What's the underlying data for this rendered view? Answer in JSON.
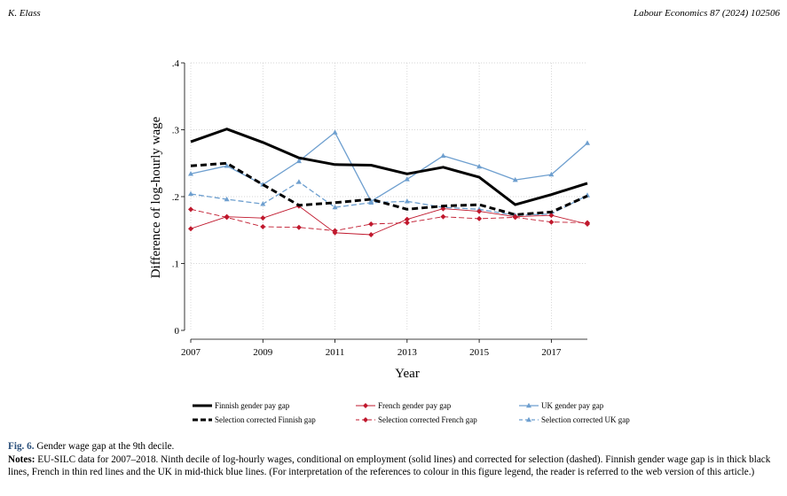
{
  "header": {
    "author": "K. Elass",
    "journal": "Labour Economics 87 (2024) 102506"
  },
  "caption": {
    "fig_label": "Fig. 6.",
    "fig_title": "Gender wage gap at the 9th decile.",
    "notes_label": "Notes:",
    "notes_text": "EU-SILC data for 2007–2018. Ninth decile of log-hourly wages, conditional on employment (solid lines) and corrected for selection (dashed). Finnish gender wage gap is in thick black lines, French in thin red lines and the UK in mid-thick blue lines. (For interpretation of the references to colour in this figure legend, the reader is referred to the web version of this article.)"
  },
  "chart_data": {
    "type": "line",
    "title": "",
    "xlabel": "Year",
    "ylabel": "Difference of log-hourly wage",
    "xlim": [
      2007,
      2018
    ],
    "ylim": [
      0,
      0.4
    ],
    "xticks": [
      2007,
      2009,
      2011,
      2013,
      2015,
      2017
    ],
    "xtick_labels": [
      "2007",
      "2009",
      "2011",
      "2013",
      "2015",
      "2017"
    ],
    "yticks": [
      0,
      0.1,
      0.2,
      0.3,
      0.4
    ],
    "ytick_labels": [
      "0",
      ".1",
      ".2",
      ".3",
      ".4"
    ],
    "grid": true,
    "legend_position": "bottom",
    "x": [
      2007,
      2008,
      2009,
      2010,
      2011,
      2012,
      2013,
      2014,
      2015,
      2016,
      2017,
      2018
    ],
    "series": [
      {
        "name": "Finnish gender pay gap",
        "color": "#000000",
        "style": "solid",
        "marker": "none",
        "values": [
          0.282,
          0.301,
          0.281,
          0.258,
          0.248,
          0.247,
          0.234,
          0.244,
          0.229,
          0.188,
          0.203,
          0.22
        ]
      },
      {
        "name": "Selection corrected Finnish gap",
        "color": "#000000",
        "style": "dashed",
        "marker": "none",
        "values": [
          0.246,
          0.25,
          0.218,
          0.187,
          0.191,
          0.196,
          0.181,
          0.186,
          0.188,
          0.173,
          0.177,
          0.201
        ]
      },
      {
        "name": "French gender pay gap",
        "color": "#c0182d",
        "style": "solid",
        "marker": "diamond",
        "values": [
          0.152,
          0.17,
          0.168,
          0.186,
          0.146,
          0.143,
          0.166,
          0.182,
          0.178,
          0.17,
          0.172,
          0.159
        ]
      },
      {
        "name": "Selection corrected French gap",
        "color": "#c0182d",
        "style": "dashed",
        "marker": "diamond",
        "values": [
          0.181,
          0.169,
          0.155,
          0.154,
          0.149,
          0.159,
          0.161,
          0.17,
          0.167,
          0.169,
          0.162,
          0.161
        ]
      },
      {
        "name": "UK gender pay gap",
        "color": "#6e9fcf",
        "style": "solid",
        "marker": "triangle",
        "values": [
          0.234,
          0.246,
          0.218,
          0.253,
          0.296,
          0.193,
          0.226,
          0.261,
          0.245,
          0.225,
          0.233,
          0.28
        ]
      },
      {
        "name": "Selection corrected UK gap",
        "color": "#6e9fcf",
        "style": "dashed",
        "marker": "triangle",
        "values": [
          0.204,
          0.196,
          0.189,
          0.222,
          0.184,
          0.191,
          0.193,
          0.184,
          0.181,
          0.172,
          0.174,
          0.202
        ]
      }
    ]
  }
}
